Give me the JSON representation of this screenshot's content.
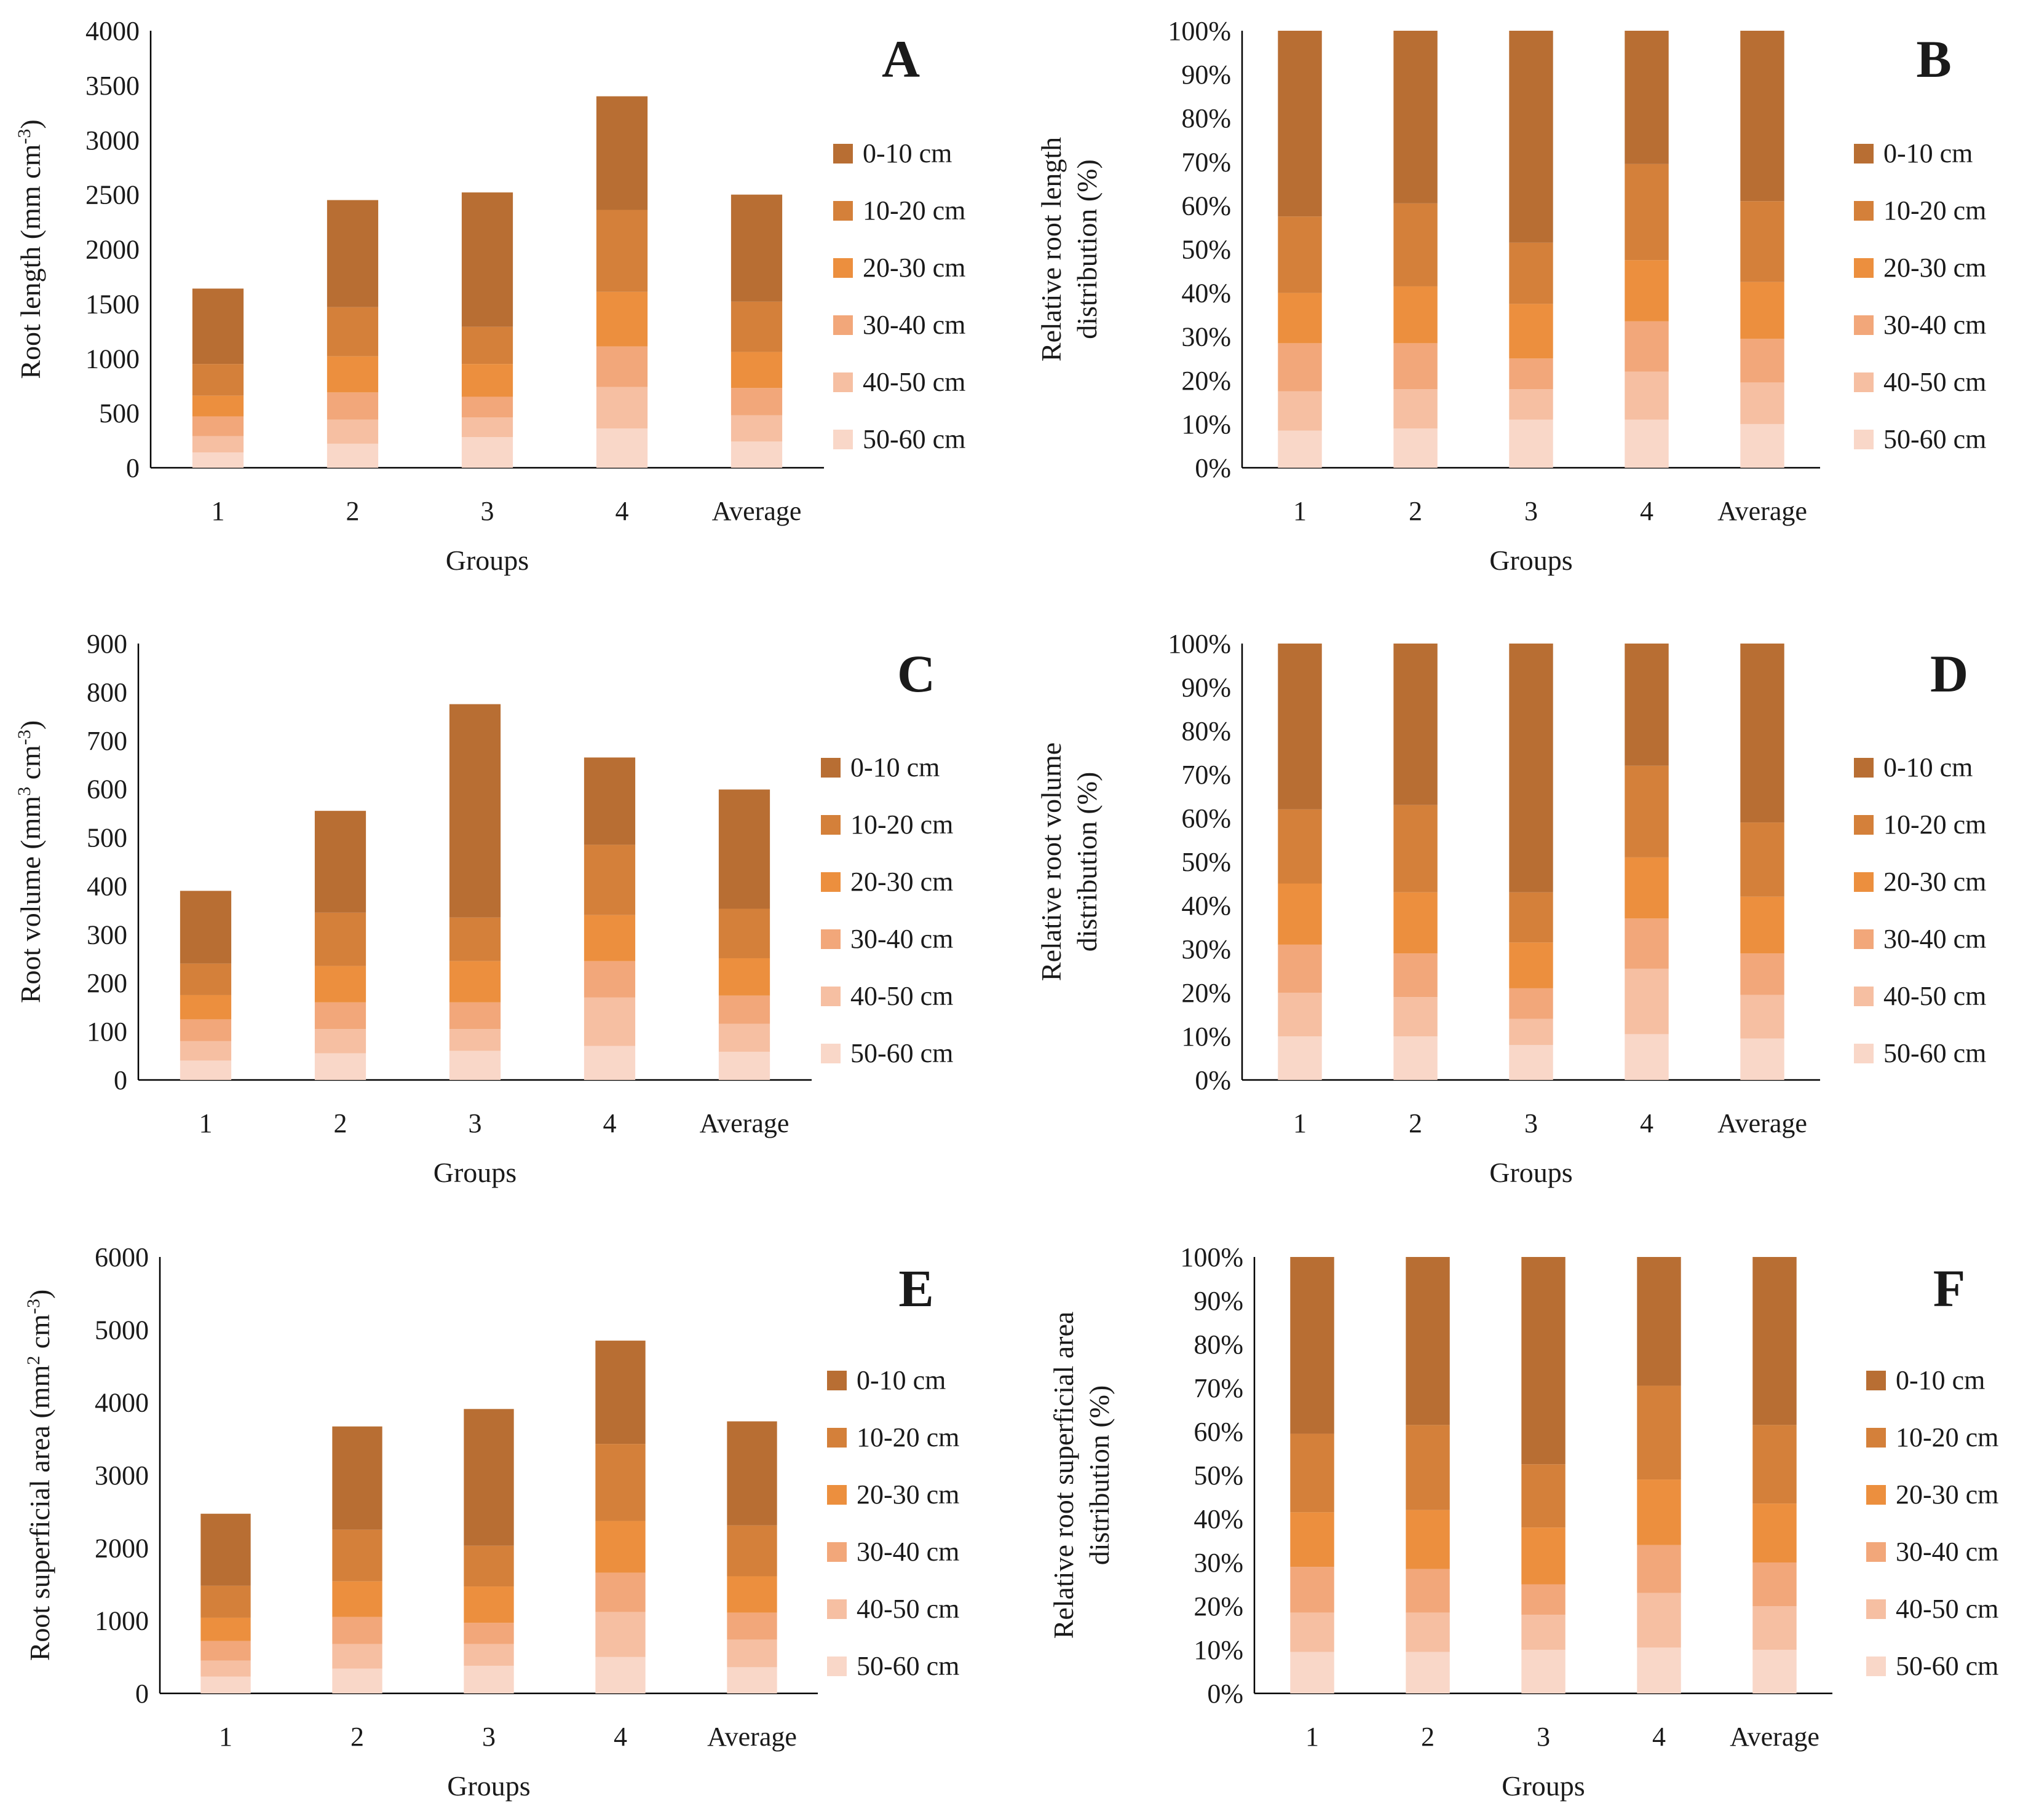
{
  "legend_labels": [
    "0-10 cm",
    "10-20 cm",
    "20-30 cm",
    "30-40 cm",
    "40-50 cm",
    "50-60 cm"
  ],
  "colors": {
    "0-10 cm": "#B86E33",
    "10-20 cm": "#D4803A",
    "20-30 cm": "#EC8F3E",
    "30-40 cm": "#F2A77A",
    "40-50 cm": "#F6BFA2",
    "50-60 cm": "#F9D7C8"
  },
  "chart_data": [
    {
      "panel": "A",
      "type": "bar",
      "stacked": true,
      "categories": [
        "1",
        "2",
        "3",
        "4",
        "Average"
      ],
      "xlabel": "Groups",
      "ylabel": "Root length (mm cm",
      "ylabel_sup": "-3",
      "ylabel_end": ")",
      "ylim": [
        0,
        4000
      ],
      "yticks": [
        0,
        500,
        1000,
        1500,
        2000,
        2500,
        3000,
        3500,
        4000
      ],
      "ytick_labels": [
        "0",
        "500",
        "1000",
        "1500",
        "2000",
        "2500",
        "3000",
        "3500",
        "4000"
      ],
      "series": [
        {
          "name": "50-60 cm",
          "values": [
            140,
            220,
            280,
            360,
            240
          ]
        },
        {
          "name": "40-50 cm",
          "values": [
            150,
            220,
            180,
            380,
            240
          ]
        },
        {
          "name": "30-40 cm",
          "values": [
            180,
            250,
            190,
            370,
            250
          ]
        },
        {
          "name": "20-30 cm",
          "values": [
            190,
            330,
            300,
            500,
            330
          ]
        },
        {
          "name": "10-20 cm",
          "values": [
            290,
            450,
            340,
            750,
            460
          ]
        },
        {
          "name": "0-10 cm",
          "values": [
            690,
            980,
            1230,
            1040,
            980
          ]
        }
      ]
    },
    {
      "panel": "B",
      "type": "bar",
      "stacked": true,
      "categories": [
        "1",
        "2",
        "3",
        "4",
        "Average"
      ],
      "xlabel": "Groups",
      "ylabel_lines": [
        "Relative root length",
        "distribution (%)"
      ],
      "ylim": [
        0,
        100
      ],
      "yticks": [
        0,
        10,
        20,
        30,
        40,
        50,
        60,
        70,
        80,
        90,
        100
      ],
      "ytick_labels": [
        "0%",
        "10%",
        "20%",
        "30%",
        "40%",
        "50%",
        "60%",
        "70%",
        "80%",
        "90%",
        "100%"
      ],
      "series": [
        {
          "name": "50-60 cm",
          "values": [
            8.5,
            9,
            11,
            11,
            10
          ]
        },
        {
          "name": "40-50 cm",
          "values": [
            9,
            9,
            7,
            11,
            9.5
          ]
        },
        {
          "name": "30-40 cm",
          "values": [
            11,
            10.5,
            7,
            11.5,
            10
          ]
        },
        {
          "name": "20-30 cm",
          "values": [
            11.5,
            13,
            12.5,
            14,
            13
          ]
        },
        {
          "name": "10-20 cm",
          "values": [
            17.5,
            19,
            14,
            22,
            18.5
          ]
        },
        {
          "name": "0-10 cm",
          "values": [
            42.5,
            39.5,
            48.5,
            30.5,
            39
          ]
        }
      ]
    },
    {
      "panel": "C",
      "type": "bar",
      "stacked": true,
      "categories": [
        "1",
        "2",
        "3",
        "4",
        "Average"
      ],
      "xlabel": "Groups",
      "ylabel": "Root volume (mm",
      "ylabel_sup": "3",
      "ylabel_mid": " cm",
      "ylabel_sup2": "-3",
      "ylabel_end": ")",
      "ylim": [
        0,
        900
      ],
      "yticks": [
        0,
        100,
        200,
        300,
        400,
        500,
        600,
        700,
        800,
        900
      ],
      "ytick_labels": [
        "0",
        "100",
        "200",
        "300",
        "400",
        "500",
        "600",
        "700",
        "800",
        "900"
      ],
      "series": [
        {
          "name": "50-60 cm",
          "values": [
            40,
            55,
            60,
            70,
            58
          ]
        },
        {
          "name": "40-50 cm",
          "values": [
            40,
            50,
            45,
            100,
            58
          ]
        },
        {
          "name": "30-40 cm",
          "values": [
            45,
            55,
            55,
            75,
            58
          ]
        },
        {
          "name": "20-30 cm",
          "values": [
            50,
            75,
            85,
            95,
            77
          ]
        },
        {
          "name": "10-20 cm",
          "values": [
            65,
            110,
            90,
            145,
            102
          ]
        },
        {
          "name": "0-10 cm",
          "values": [
            150,
            210,
            440,
            180,
            246
          ]
        }
      ]
    },
    {
      "panel": "D",
      "type": "bar",
      "stacked": true,
      "categories": [
        "1",
        "2",
        "3",
        "4",
        "Average"
      ],
      "xlabel": "Groups",
      "ylabel_lines": [
        "Relative root volume",
        "distribution (%)"
      ],
      "ylim": [
        0,
        100
      ],
      "yticks": [
        0,
        10,
        20,
        30,
        40,
        50,
        60,
        70,
        80,
        90,
        100
      ],
      "ytick_labels": [
        "0%",
        "10%",
        "20%",
        "30%",
        "40%",
        "50%",
        "60%",
        "70%",
        "80%",
        "90%",
        "100%"
      ],
      "series": [
        {
          "name": "50-60 cm",
          "values": [
            10,
            10,
            8,
            10.5,
            9.5
          ]
        },
        {
          "name": "40-50 cm",
          "values": [
            10,
            9,
            6,
            15,
            10
          ]
        },
        {
          "name": "30-40 cm",
          "values": [
            11,
            10,
            7,
            11.5,
            9.5
          ]
        },
        {
          "name": "20-30 cm",
          "values": [
            14,
            14,
            10.5,
            14,
            13
          ]
        },
        {
          "name": "10-20 cm",
          "values": [
            17,
            20,
            11.5,
            21,
            17
          ]
        },
        {
          "name": "0-10 cm",
          "values": [
            38,
            37,
            57,
            28,
            41
          ]
        }
      ]
    },
    {
      "panel": "E",
      "type": "bar",
      "stacked": true,
      "categories": [
        "1",
        "2",
        "3",
        "4",
        "Average"
      ],
      "xlabel": "Groups",
      "ylabel": "Root superficial area (mm",
      "ylabel_sup": "2",
      "ylabel_mid": " cm",
      "ylabel_sup2": "-3",
      "ylabel_end": ")",
      "ylim": [
        0,
        6000
      ],
      "yticks": [
        0,
        1000,
        2000,
        3000,
        4000,
        5000,
        6000
      ],
      "ytick_labels": [
        "0",
        "1000",
        "2000",
        "3000",
        "4000",
        "5000",
        "6000"
      ],
      "series": [
        {
          "name": "50-60 cm",
          "values": [
            230,
            340,
            380,
            500,
            360
          ]
        },
        {
          "name": "40-50 cm",
          "values": [
            220,
            340,
            300,
            620,
            380
          ]
        },
        {
          "name": "30-40 cm",
          "values": [
            270,
            370,
            290,
            540,
            370
          ]
        },
        {
          "name": "20-30 cm",
          "values": [
            320,
            490,
            500,
            710,
            500
          ]
        },
        {
          "name": "10-20 cm",
          "values": [
            440,
            710,
            560,
            1060,
            700
          ]
        },
        {
          "name": "0-10 cm",
          "values": [
            990,
            1420,
            1880,
            1420,
            1430
          ]
        }
      ]
    },
    {
      "panel": "F",
      "type": "bar",
      "stacked": true,
      "categories": [
        "1",
        "2",
        "3",
        "4",
        "Average"
      ],
      "xlabel": "Groups",
      "ylabel_lines": [
        "Relative root superficial area",
        "distribution (%)"
      ],
      "ylim": [
        0,
        100
      ],
      "yticks": [
        0,
        10,
        20,
        30,
        40,
        50,
        60,
        70,
        80,
        90,
        100
      ],
      "ytick_labels": [
        "0%",
        "10%",
        "20%",
        "30%",
        "40%",
        "50%",
        "60%",
        "70%",
        "80%",
        "90%",
        "100%"
      ],
      "series": [
        {
          "name": "50-60 cm",
          "values": [
            9.5,
            9.5,
            10,
            10.5,
            10
          ]
        },
        {
          "name": "40-50 cm",
          "values": [
            9,
            9,
            8,
            12.5,
            10
          ]
        },
        {
          "name": "30-40 cm",
          "values": [
            10.5,
            10,
            7,
            11,
            10
          ]
        },
        {
          "name": "20-30 cm",
          "values": [
            12.5,
            13.5,
            13,
            15,
            13.5
          ]
        },
        {
          "name": "10-20 cm",
          "values": [
            18,
            19.5,
            14.5,
            21.5,
            18
          ]
        },
        {
          "name": "0-10 cm",
          "values": [
            40.5,
            38.5,
            47.5,
            29.5,
            38.5
          ]
        }
      ]
    }
  ]
}
